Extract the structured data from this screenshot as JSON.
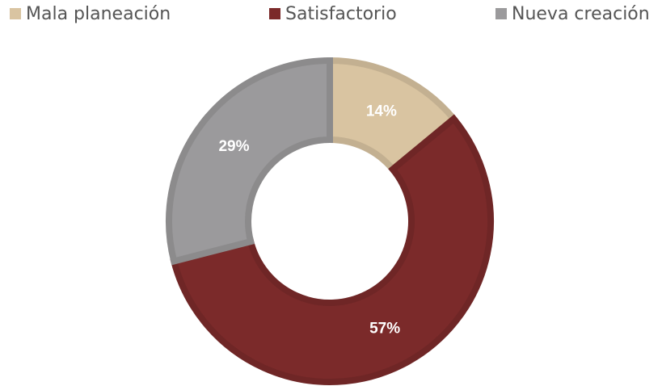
{
  "chart_data": {
    "type": "donut",
    "categories": [
      "Mala planeación",
      "Satisfactorio",
      "Nueva creación"
    ],
    "values": [
      14,
      57,
      29
    ],
    "value_labels": [
      "14%",
      "57%",
      "29%"
    ],
    "colors": [
      "#d9c4a1",
      "#7b2a2a",
      "#9b9a9c"
    ],
    "legend": "top"
  }
}
